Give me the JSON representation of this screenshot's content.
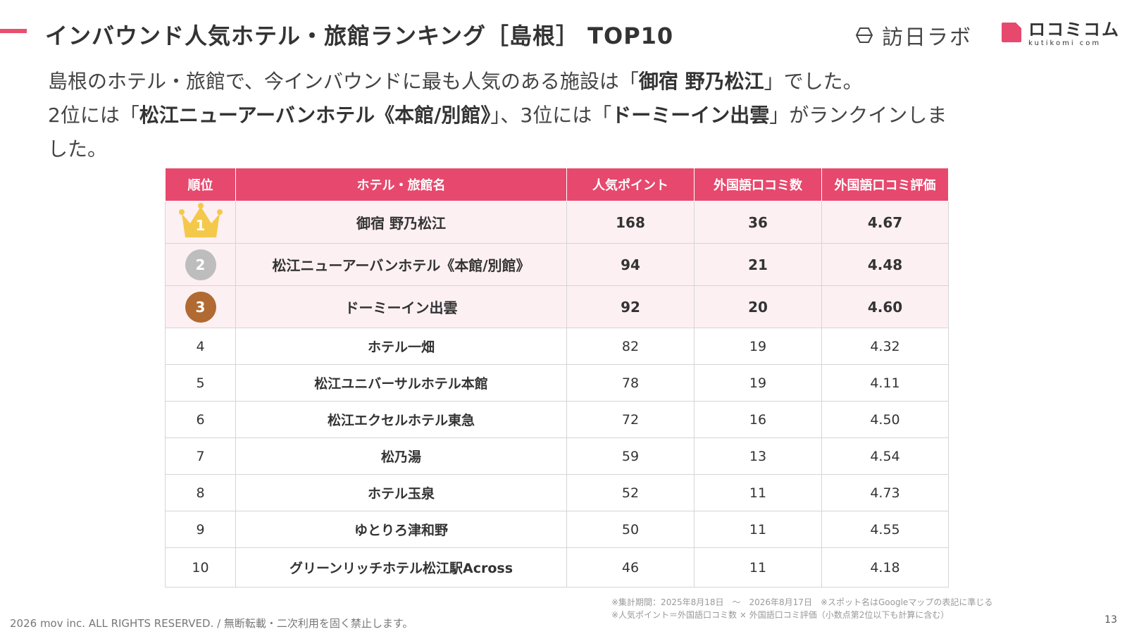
{
  "header": {
    "title": "インバウンド人気ホテル・旅館ランキング［島根］ TOP10",
    "logo_houjitsu": "訪日ラボ",
    "logo_kutikomi_main": "ロコミコム",
    "logo_kutikomi_sub": "kutikomi com"
  },
  "intro": {
    "line1_pre": "島根のホテル・旅館で、今インバウンドに最も人気のある施設は「",
    "line1_bold": "御宿 野乃松江",
    "line1_post": "」でした。",
    "line2_pre": "2位には「",
    "line2_bold1": "松江ニューアーバンホテル《本館/別館》",
    "line2_mid": "」、3位には「",
    "line2_bold2": "ドーミーイン出雲",
    "line2_post": "」がランクインしま",
    "line3": "した。"
  },
  "table": {
    "headers": [
      "順位",
      "ホテル・旅館名",
      "人気ポイント",
      "外国語口コミ数",
      "外国語口コミ評価"
    ],
    "rows": [
      {
        "rank": "1",
        "name": "御宿 野乃松江",
        "points": "168",
        "reviews": "36",
        "rating": "4.67"
      },
      {
        "rank": "2",
        "name": "松江ニューアーバンホテル《本館/別館》",
        "points": "94",
        "reviews": "21",
        "rating": "4.48"
      },
      {
        "rank": "3",
        "name": "ドーミーイン出雲",
        "points": "92",
        "reviews": "20",
        "rating": "4.60"
      },
      {
        "rank": "4",
        "name": "ホテル一畑",
        "points": "82",
        "reviews": "19",
        "rating": "4.32"
      },
      {
        "rank": "5",
        "name": "松江ユニバーサルホテル本館",
        "points": "78",
        "reviews": "19",
        "rating": "4.11"
      },
      {
        "rank": "6",
        "name": "松江エクセルホテル東急",
        "points": "72",
        "reviews": "16",
        "rating": "4.50"
      },
      {
        "rank": "7",
        "name": "松乃湯",
        "points": "59",
        "reviews": "13",
        "rating": "4.54"
      },
      {
        "rank": "8",
        "name": "ホテル玉泉",
        "points": "52",
        "reviews": "11",
        "rating": "4.73"
      },
      {
        "rank": "9",
        "name": "ゆとりろ津和野",
        "points": "50",
        "reviews": "11",
        "rating": "4.55"
      },
      {
        "rank": "10",
        "name": "グリーンリッチホテル松江駅Across",
        "points": "46",
        "reviews": "11",
        "rating": "4.18"
      }
    ]
  },
  "notes": {
    "line1": "※集計期間：2025年8月18日　～　2026年8月17日　※スポット名はGoogleマップの表記に準じる",
    "line2": "※人気ポイント＝外国語口コミ数 × 外国語口コミ評価（小数点第2位以下も計算に含む）"
  },
  "footer": {
    "copyright": "2026 mov inc. ALL RIGHTS RESERVED. / 無断転載・二次利用を固く禁止します。",
    "page_number": "13"
  },
  "colors": {
    "accent": "#e6496d",
    "top_row_bg": "#fdf0f3",
    "gold": "#f4c84a",
    "silver": "#bdbdbd",
    "bronze": "#b06a32"
  },
  "icons": {
    "rank1": "crown-icon",
    "rank2": "silver-medal-icon",
    "rank3": "bronze-medal-icon"
  }
}
